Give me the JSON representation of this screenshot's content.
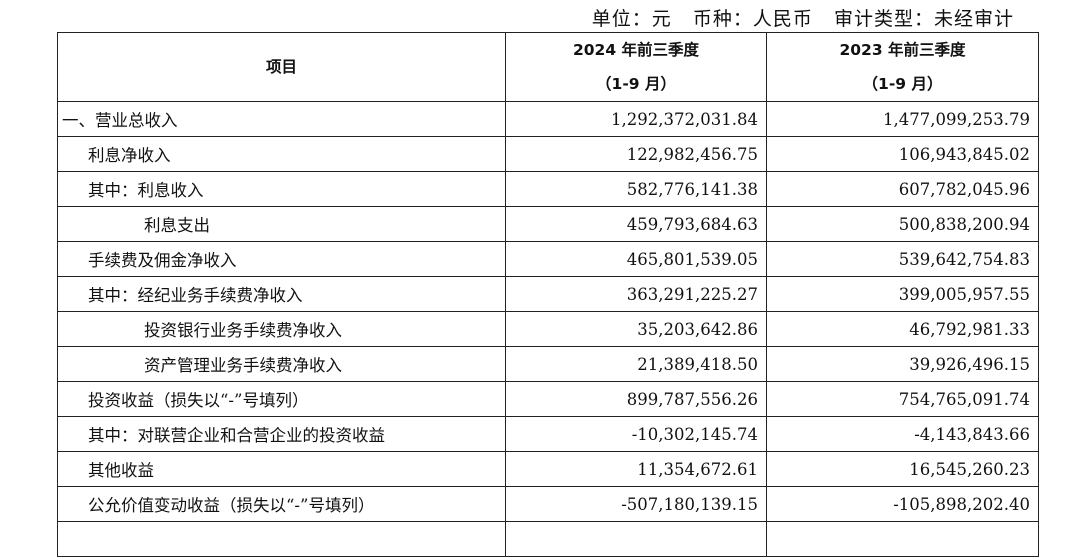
{
  "meta": "单位：元   币种：人民币   审计类型：未经审计",
  "header": {
    "item": "项目",
    "col1_line1": "2024 年前三季度",
    "col1_line2": "（1-9 月）",
    "col2_line1": "2023 年前三季度",
    "col2_line2": "（1-9 月）"
  },
  "rows": [
    {
      "label": "一、营业总收入",
      "indent": 0,
      "v2024": "1,292,372,031.84",
      "v2023": "1,477,099,253.79"
    },
    {
      "label": "利息净收入",
      "indent": 1,
      "v2024": "122,982,456.75",
      "v2023": "106,943,845.02"
    },
    {
      "label": "其中：利息收入",
      "indent": 1,
      "v2024": "582,776,141.38",
      "v2023": "607,782,045.96"
    },
    {
      "label": "利息支出",
      "indent": 2,
      "v2024": "459,793,684.63",
      "v2023": "500,838,200.94"
    },
    {
      "label": "手续费及佣金净收入",
      "indent": 1,
      "v2024": "465,801,539.05",
      "v2023": "539,642,754.83"
    },
    {
      "label": "其中：经纪业务手续费净收入",
      "indent": 1,
      "v2024": "363,291,225.27",
      "v2023": "399,005,957.55"
    },
    {
      "label": "投资银行业务手续费净收入",
      "indent": 2,
      "v2024": "35,203,642.86",
      "v2023": "46,792,981.33"
    },
    {
      "label": "资产管理业务手续费净收入",
      "indent": 2,
      "v2024": "21,389,418.50",
      "v2023": "39,926,496.15"
    },
    {
      "label": "投资收益（损失以“-”号填列）",
      "indent": 1,
      "v2024": "899,787,556.26",
      "v2023": "754,765,091.74"
    },
    {
      "label": "其中：对联营企业和合营企业的投资收益",
      "indent": 1,
      "v2024": "-10,302,145.74",
      "v2023": "-4,143,843.66"
    },
    {
      "label": "其他收益",
      "indent": 1,
      "v2024": "11,354,672.61",
      "v2023": "16,545,260.23"
    },
    {
      "label": "公允价值变动收益（损失以“-”号填列）",
      "indent": 1,
      "v2024": "-507,180,139.15",
      "v2023": "-105,898,202.40"
    }
  ]
}
